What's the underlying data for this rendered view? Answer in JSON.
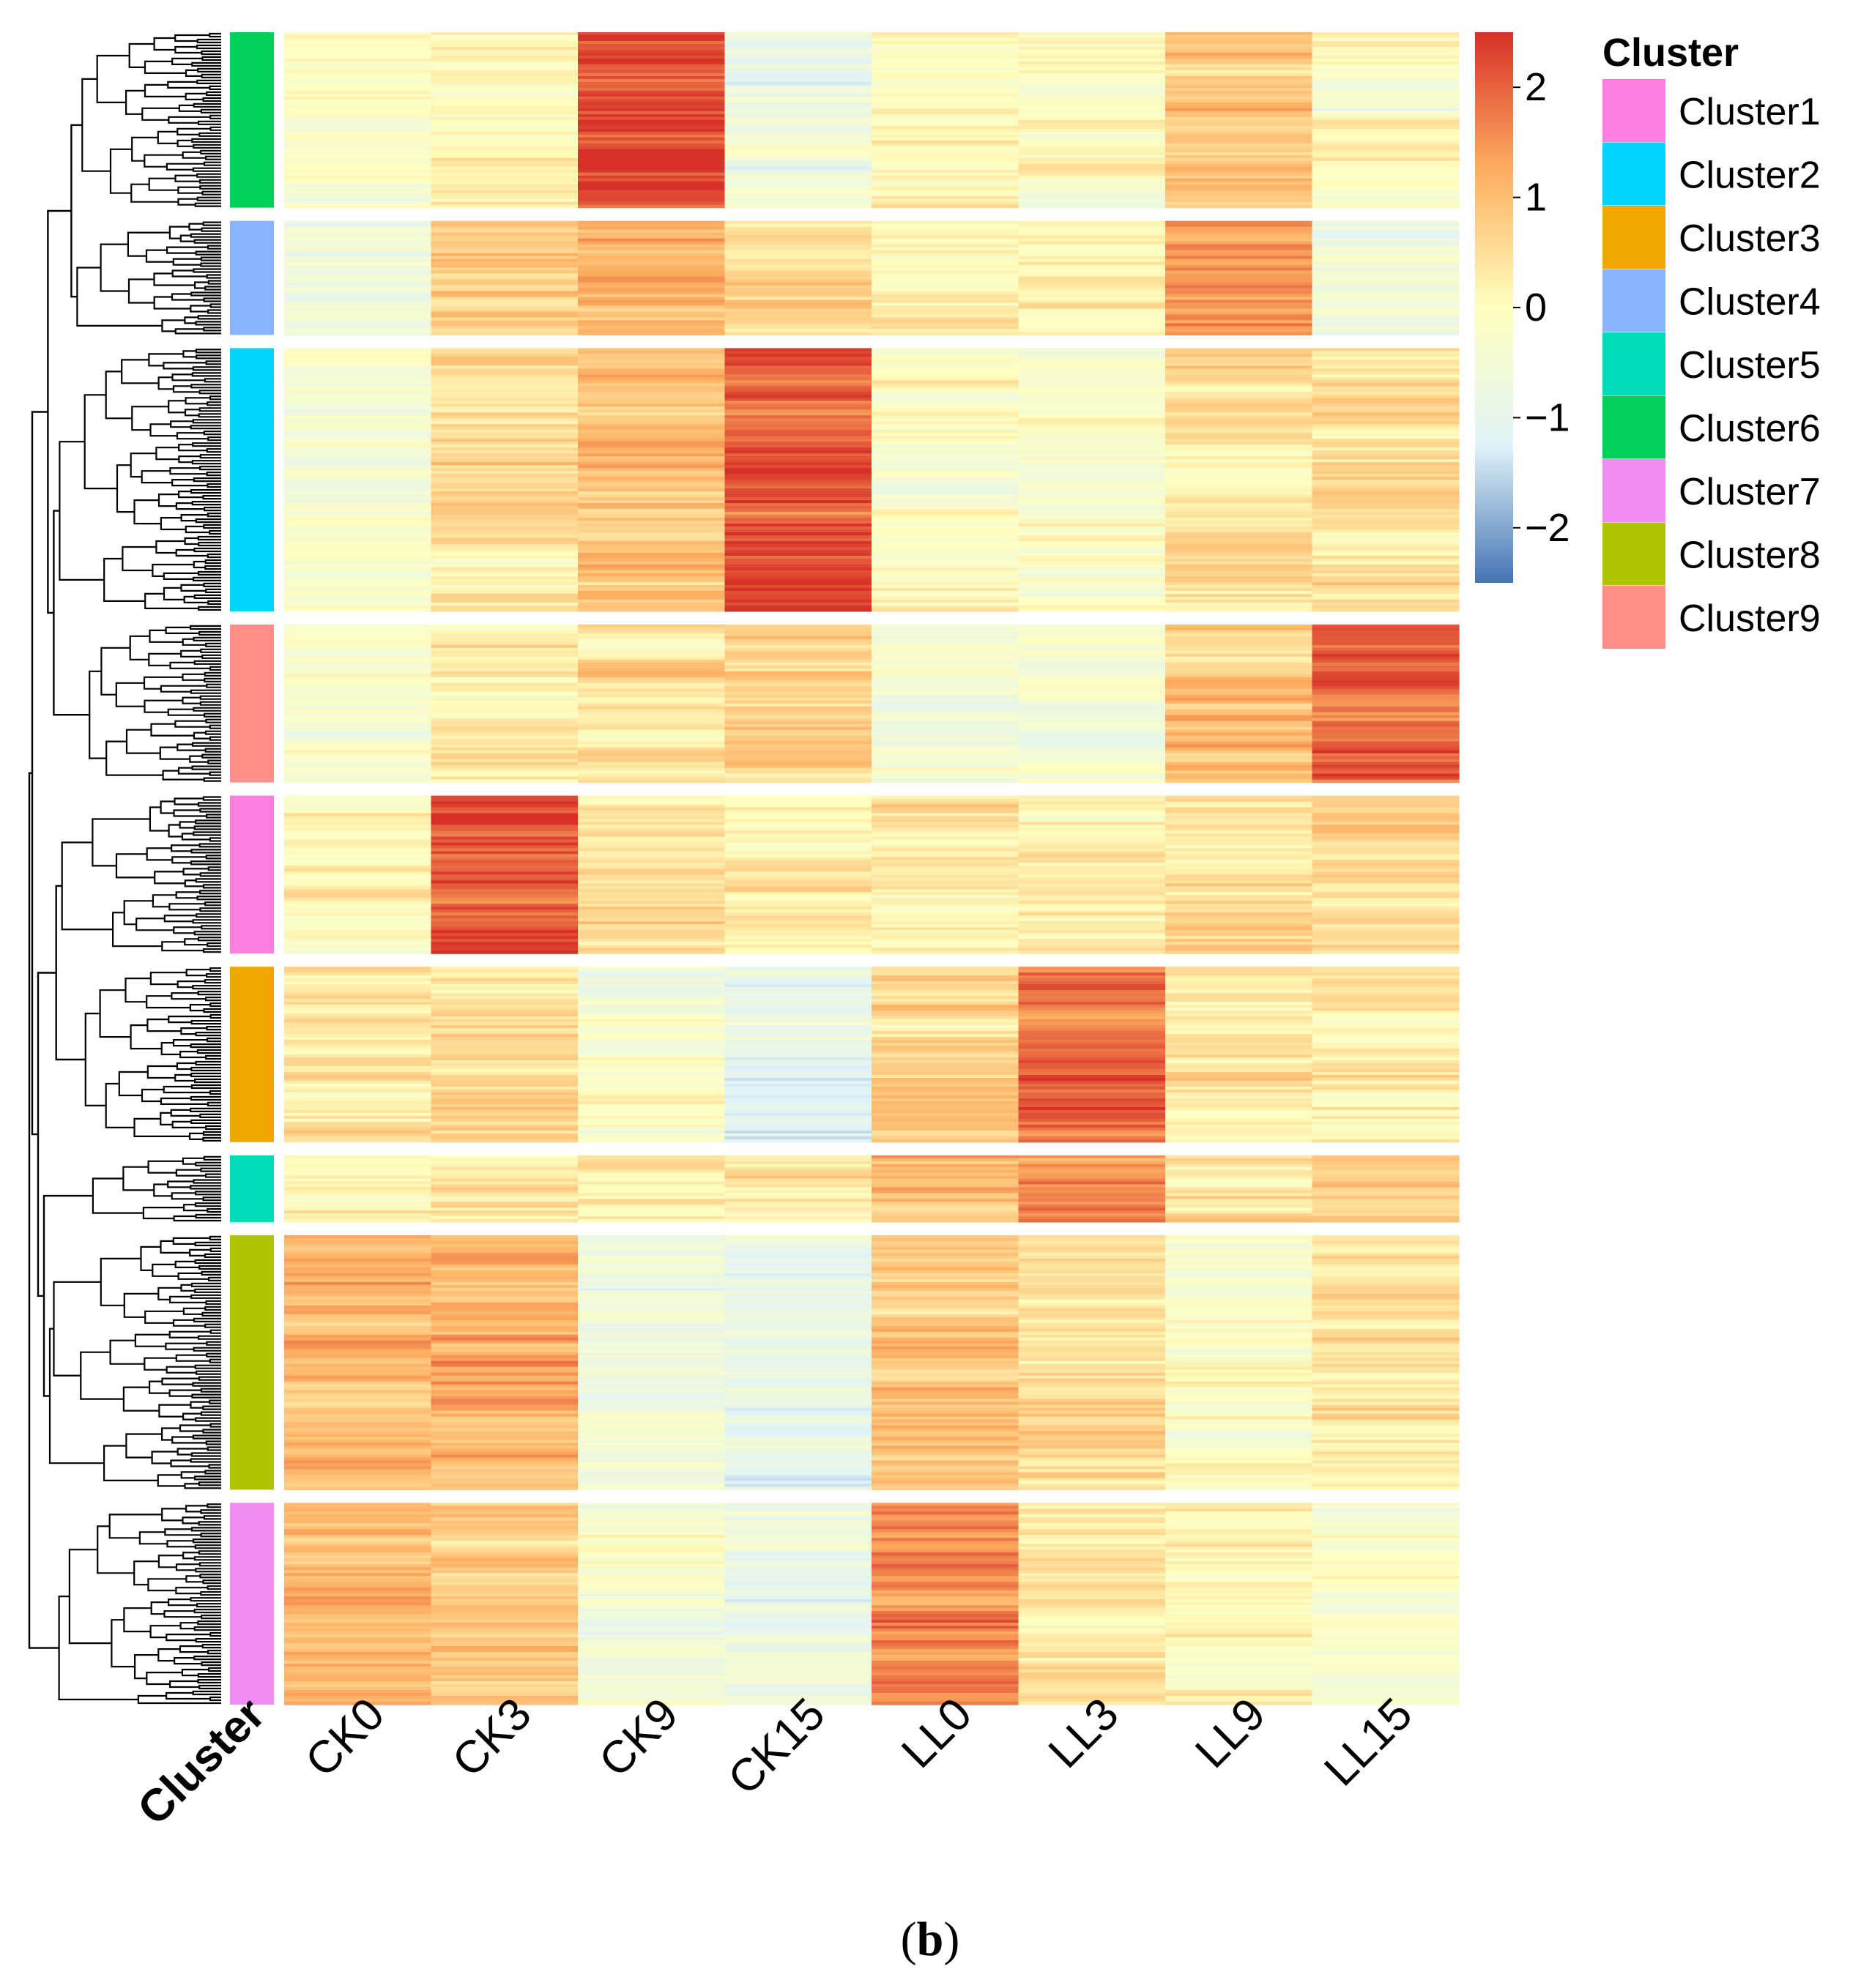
{
  "chart_data": {
    "type": "heatmap",
    "title": "",
    "caption": "(b)",
    "caption_parts": {
      "open": "(",
      "letter": "b",
      "close": ")"
    },
    "columns": [
      "CK0",
      "CK3",
      "CK9",
      "CK15",
      "LL0",
      "LL3",
      "LL9",
      "LL15"
    ],
    "annotation_label": "Cluster",
    "color_scale": {
      "ticks": [
        "2",
        "1",
        "0",
        "−1",
        "−2"
      ],
      "tick_values": [
        2,
        1,
        0,
        -1,
        -2
      ],
      "range": [
        -2.5,
        2.5
      ],
      "colors": [
        "#4575b4",
        "#e0f3f8",
        "#ffffbf",
        "#fdae61",
        "#d73027"
      ]
    },
    "legend": {
      "title": "Cluster",
      "items": [
        {
          "label": "Cluster1",
          "color": "#ff7fe0"
        },
        {
          "label": "Cluster2",
          "color": "#00d4ff"
        },
        {
          "label": "Cluster3",
          "color": "#f0a800"
        },
        {
          "label": "Cluster4",
          "color": "#8ab4ff"
        },
        {
          "label": "Cluster5",
          "color": "#00dcb8"
        },
        {
          "label": "Cluster6",
          "color": "#00d05a"
        },
        {
          "label": "Cluster7",
          "color": "#f28bf2"
        },
        {
          "label": "Cluster8",
          "color": "#aec400"
        },
        {
          "label": "Cluster9",
          "color": "#ff8f88"
        }
      ]
    },
    "row_blocks": [
      {
        "cluster": "Cluster6",
        "relative_size": 1.0,
        "mean_values": [
          -0.2,
          0.1,
          2.2,
          -0.6,
          0.0,
          -0.2,
          1.0,
          -0.1
        ]
      },
      {
        "cluster": "Cluster4",
        "relative_size": 0.65,
        "mean_values": [
          -0.6,
          0.8,
          1.2,
          0.6,
          0.2,
          0.1,
          1.6,
          -0.6
        ]
      },
      {
        "cluster": "Cluster2",
        "relative_size": 1.5,
        "mean_values": [
          -0.4,
          0.5,
          0.8,
          2.1,
          -0.2,
          -0.3,
          0.4,
          0.5
        ]
      },
      {
        "cluster": "Cluster9",
        "relative_size": 0.9,
        "mean_values": [
          -0.3,
          0.2,
          0.4,
          0.6,
          -0.4,
          -0.3,
          0.9,
          2.0
        ]
      },
      {
        "cluster": "Cluster1",
        "relative_size": 0.9,
        "mean_values": [
          0.1,
          2.2,
          0.5,
          0.2,
          0.3,
          0.1,
          0.5,
          0.6
        ]
      },
      {
        "cluster": "Cluster3",
        "relative_size": 1.0,
        "mean_values": [
          0.4,
          0.5,
          -0.3,
          -0.9,
          0.8,
          1.9,
          0.2,
          0.3
        ]
      },
      {
        "cluster": "Cluster5",
        "relative_size": 0.38,
        "mean_values": [
          0.2,
          0.1,
          0.2,
          0.1,
          1.1,
          1.6,
          0.4,
          0.6
        ]
      },
      {
        "cluster": "Cluster8",
        "relative_size": 1.45,
        "mean_values": [
          1.2,
          1.2,
          -0.5,
          -0.8,
          0.9,
          0.4,
          -0.3,
          0.4
        ]
      },
      {
        "cluster": "Cluster7",
        "relative_size": 1.15,
        "mean_values": [
          0.9,
          0.8,
          -0.4,
          -0.7,
          1.6,
          0.4,
          0.0,
          -0.3
        ]
      }
    ]
  }
}
